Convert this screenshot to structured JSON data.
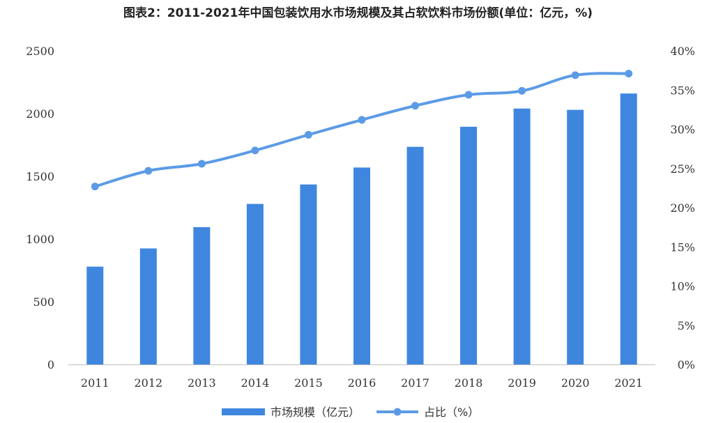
{
  "chart_data": {
    "type": "bar",
    "title": "图表2：2011-2021年中国包装饮用水市场规模及其占软饮料市场份额(单位：亿元，%)",
    "categories": [
      "2011",
      "2012",
      "2013",
      "2014",
      "2015",
      "2016",
      "2017",
      "2018",
      "2019",
      "2020",
      "2021"
    ],
    "series": [
      {
        "name": "市场规模（亿元）",
        "kind": "bar",
        "axis": "left",
        "values": [
          780,
          925,
          1095,
          1280,
          1435,
          1570,
          1735,
          1895,
          2040,
          2030,
          2160
        ]
      },
      {
        "name": "占比（%）",
        "kind": "line",
        "axis": "right",
        "values": [
          22.7,
          24.7,
          25.6,
          27.3,
          29.3,
          31.2,
          33.0,
          34.4,
          34.9,
          36.9,
          37.1
        ]
      }
    ],
    "left_axis": {
      "ylim": [
        0,
        2500
      ],
      "ticks": [
        "0",
        "500",
        "1000",
        "1500",
        "2000",
        "2500"
      ]
    },
    "right_axis": {
      "ylim": [
        0,
        40
      ],
      "ticks": [
        "0%",
        "5%",
        "10%",
        "15%",
        "20%",
        "25%",
        "30%",
        "35%",
        "40%"
      ]
    },
    "grid": false,
    "legend": "bottom-center",
    "colors": {
      "bar": "#3f86df",
      "line": "#5b9be6"
    }
  }
}
